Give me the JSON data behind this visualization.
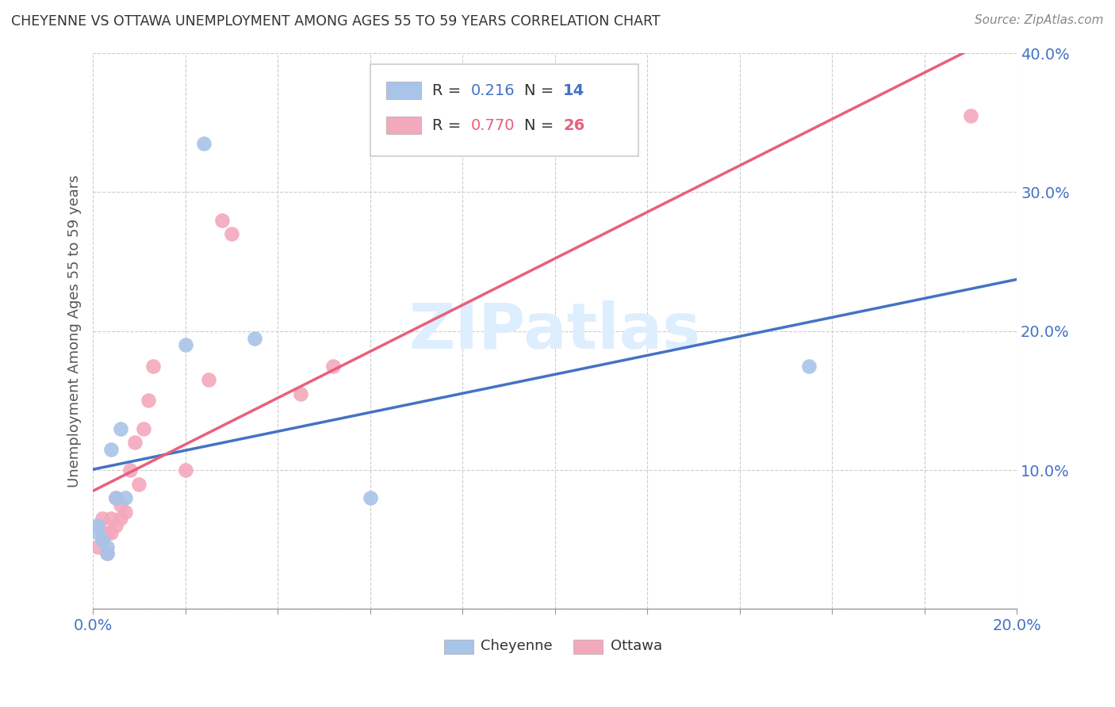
{
  "title": "CHEYENNE VS OTTAWA UNEMPLOYMENT AMONG AGES 55 TO 59 YEARS CORRELATION CHART",
  "source": "Source: ZipAtlas.com",
  "ylabel": "Unemployment Among Ages 55 to 59 years",
  "xlim": [
    0.0,
    0.2
  ],
  "ylim": [
    0.0,
    0.4
  ],
  "xticks": [
    0.0,
    0.02,
    0.04,
    0.06,
    0.08,
    0.1,
    0.12,
    0.14,
    0.16,
    0.18,
    0.2
  ],
  "yticks": [
    0.0,
    0.1,
    0.2,
    0.3,
    0.4
  ],
  "cheyenne_color": "#a8c4e8",
  "ottawa_color": "#f4a8bc",
  "cheyenne_line_color": "#4472c4",
  "ottawa_line_color": "#e8607a",
  "cheyenne_R": 0.216,
  "cheyenne_N": 14,
  "ottawa_R": 0.77,
  "ottawa_N": 26,
  "watermark": "ZIPatlas",
  "watermark_color": "#ddeeff",
  "cheyenne_x": [
    0.001,
    0.001,
    0.002,
    0.003,
    0.003,
    0.004,
    0.005,
    0.006,
    0.007,
    0.02,
    0.024,
    0.06,
    0.155,
    0.035
  ],
  "cheyenne_y": [
    0.06,
    0.055,
    0.05,
    0.045,
    0.04,
    0.115,
    0.08,
    0.13,
    0.08,
    0.19,
    0.335,
    0.08,
    0.175,
    0.195
  ],
  "ottawa_x": [
    0.001,
    0.001,
    0.002,
    0.002,
    0.003,
    0.003,
    0.004,
    0.004,
    0.005,
    0.005,
    0.006,
    0.006,
    0.007,
    0.008,
    0.009,
    0.01,
    0.011,
    0.012,
    0.013,
    0.02,
    0.025,
    0.028,
    0.03,
    0.045,
    0.052,
    0.19
  ],
  "ottawa_y": [
    0.06,
    0.045,
    0.065,
    0.05,
    0.055,
    0.04,
    0.065,
    0.055,
    0.08,
    0.06,
    0.075,
    0.065,
    0.07,
    0.1,
    0.12,
    0.09,
    0.13,
    0.15,
    0.175,
    0.1,
    0.165,
    0.28,
    0.27,
    0.155,
    0.175,
    0.355
  ],
  "legend_R_label": "R = ",
  "legend_N_label": "N = "
}
